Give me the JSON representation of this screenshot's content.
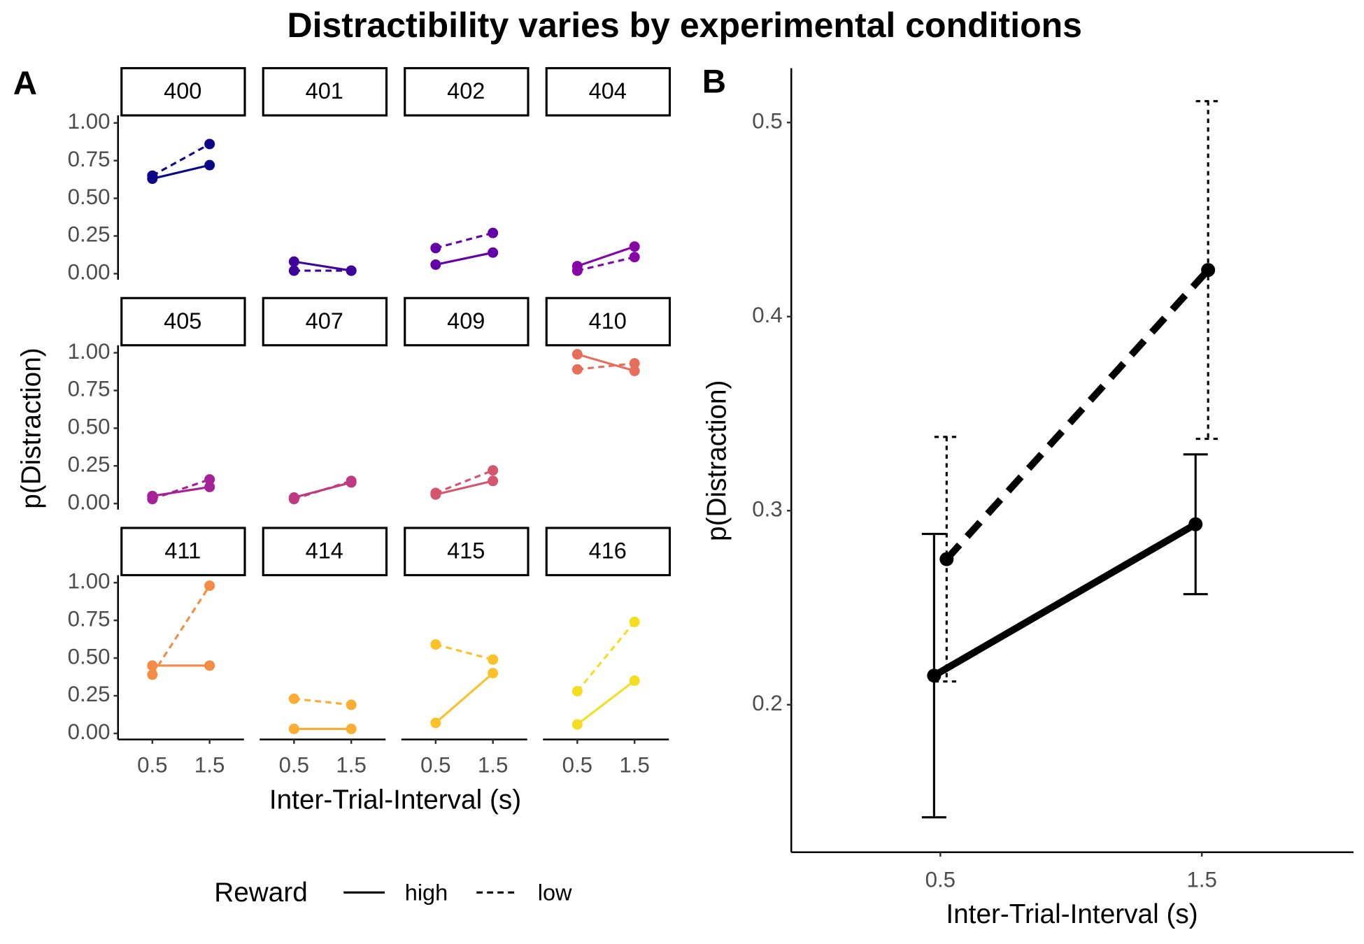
{
  "title": "Distractibility varies by experimental conditions",
  "chart_data": [
    {
      "type": "facet_line",
      "panel_label": "A",
      "x_label": "Inter-Trial-Interval (s)",
      "y_label": "p(Distraction)",
      "x": [
        0.5,
        1.5
      ],
      "xlim": [
        -0.1,
        2.1
      ],
      "xticks": [
        0.5,
        1.5
      ],
      "ylim": [
        -0.04,
        1.05
      ],
      "yticks": [
        {
          "value": 0,
          "label": "0.00"
        },
        {
          "value": 0.25,
          "label": "0.25"
        },
        {
          "value": 0.5,
          "label": "0.50"
        },
        {
          "value": 0.75,
          "label": "0.75"
        },
        {
          "value": 1,
          "label": "1.00"
        }
      ],
      "legend_title": "Reward",
      "series": [
        {
          "name": "high",
          "dash": "solid"
        },
        {
          "name": "low",
          "dash": "dashed"
        }
      ],
      "facets": [
        {
          "title": "400",
          "color": "#0d0887",
          "values": [
            [
              0.63,
              0.72
            ],
            [
              0.65,
              0.86
            ]
          ]
        },
        {
          "title": "401",
          "color": "#3e049c",
          "values": [
            [
              0.08,
              0.02
            ],
            [
              0.02,
              0.02
            ]
          ]
        },
        {
          "title": "402",
          "color": "#6300a7",
          "values": [
            [
              0.06,
              0.14
            ],
            [
              0.17,
              0.27
            ]
          ]
        },
        {
          "title": "404",
          "color": "#8707a6",
          "values": [
            [
              0.05,
              0.18
            ],
            [
              0.02,
              0.11
            ]
          ]
        },
        {
          "title": "405",
          "color": "#a62098",
          "values": [
            [
              0.05,
              0.11
            ],
            [
              0.03,
              0.16
            ]
          ]
        },
        {
          "title": "407",
          "color": "#c03a83",
          "values": [
            [
              0.04,
              0.14
            ],
            [
              0.03,
              0.15
            ]
          ]
        },
        {
          "title": "409",
          "color": "#d5546e",
          "values": [
            [
              0.06,
              0.15
            ],
            [
              0.07,
              0.22
            ]
          ]
        },
        {
          "title": "410",
          "color": "#e76f5a",
          "values": [
            [
              0.99,
              0.88
            ],
            [
              0.89,
              0.93
            ]
          ]
        },
        {
          "title": "411",
          "color": "#f58c46",
          "values": [
            [
              0.45,
              0.45
            ],
            [
              0.39,
              0.98
            ]
          ]
        },
        {
          "title": "414",
          "color": "#fdad32",
          "values": [
            [
              0.03,
              0.03
            ],
            [
              0.23,
              0.19
            ]
          ]
        },
        {
          "title": "415",
          "color": "#fbc12a",
          "values": [
            [
              0.07,
              0.4
            ],
            [
              0.59,
              0.49
            ]
          ]
        },
        {
          "title": "416",
          "color": "#f4de22",
          "values": [
            [
              0.06,
              0.35
            ],
            [
              0.28,
              0.74
            ]
          ]
        }
      ]
    },
    {
      "type": "errorbar_line",
      "panel_label": "B",
      "x_label": "Inter-Trial-Interval (s)",
      "y_label": "p(Distraction)",
      "x": [
        0.5,
        1.5
      ],
      "xlim": [
        -0.07,
        2.08
      ],
      "xticks": [
        0.5,
        1.5
      ],
      "ylim": [
        0.124,
        0.528
      ],
      "yticks": [
        0.2,
        0.3,
        0.4,
        0.5
      ],
      "color": "#000000",
      "series": [
        {
          "dash": "solid",
          "values": [
            0.215,
            0.293
          ],
          "errors": [
            0.073,
            0.036
          ]
        },
        {
          "dash": "dashed",
          "values": [
            0.275,
            0.424
          ],
          "errors": [
            0.063,
            0.087
          ]
        }
      ]
    }
  ]
}
